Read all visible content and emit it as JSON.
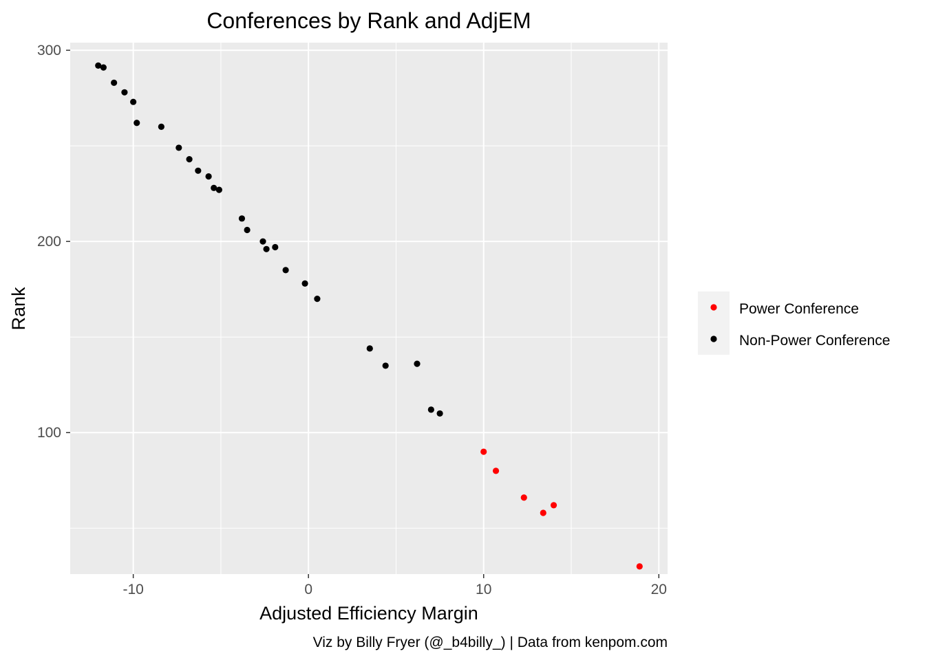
{
  "chart_data": {
    "type": "scatter",
    "title": "Conferences by Rank and AdjEM",
    "xlabel": "Adjusted Efficiency Margin",
    "ylabel": "Rank",
    "caption": "Viz by Billy Fryer (@_b4billy_) | Data from kenpom.com",
    "xlim": [
      -13.6,
      20.5
    ],
    "ylim": [
      26,
      304
    ],
    "xticks": [
      -10,
      0,
      10,
      20
    ],
    "xtick_labels": [
      "-10",
      "0",
      "10",
      "20"
    ],
    "yticks": [
      100,
      200,
      300
    ],
    "ytick_labels": [
      "100",
      "200",
      "300"
    ],
    "grid": true,
    "legend_position": "right",
    "series": [
      {
        "name": "Power Conference",
        "color": "#ff0000",
        "points": [
          {
            "x": 10.0,
            "y": 90
          },
          {
            "x": 10.7,
            "y": 80
          },
          {
            "x": 12.3,
            "y": 66
          },
          {
            "x": 13.4,
            "y": 58
          },
          {
            "x": 14.0,
            "y": 62
          },
          {
            "x": 18.9,
            "y": 30
          }
        ]
      },
      {
        "name": "Non-Power Conference",
        "color": "#000000",
        "points": [
          {
            "x": -12.0,
            "y": 292
          },
          {
            "x": -11.7,
            "y": 291
          },
          {
            "x": -11.1,
            "y": 283
          },
          {
            "x": -10.5,
            "y": 278
          },
          {
            "x": -10.0,
            "y": 273
          },
          {
            "x": -9.8,
            "y": 262
          },
          {
            "x": -8.4,
            "y": 260
          },
          {
            "x": -7.4,
            "y": 249
          },
          {
            "x": -6.8,
            "y": 243
          },
          {
            "x": -6.3,
            "y": 237
          },
          {
            "x": -5.7,
            "y": 234
          },
          {
            "x": -5.4,
            "y": 228
          },
          {
            "x": -5.1,
            "y": 227
          },
          {
            "x": -3.8,
            "y": 212
          },
          {
            "x": -3.5,
            "y": 206
          },
          {
            "x": -2.6,
            "y": 200
          },
          {
            "x": -2.4,
            "y": 196
          },
          {
            "x": -1.9,
            "y": 197
          },
          {
            "x": -1.3,
            "y": 185
          },
          {
            "x": -0.2,
            "y": 178
          },
          {
            "x": 0.5,
            "y": 170
          },
          {
            "x": 3.5,
            "y": 144
          },
          {
            "x": 4.4,
            "y": 135
          },
          {
            "x": 6.2,
            "y": 136
          },
          {
            "x": 7.0,
            "y": 112
          },
          {
            "x": 7.5,
            "y": 110
          }
        ]
      }
    ]
  }
}
